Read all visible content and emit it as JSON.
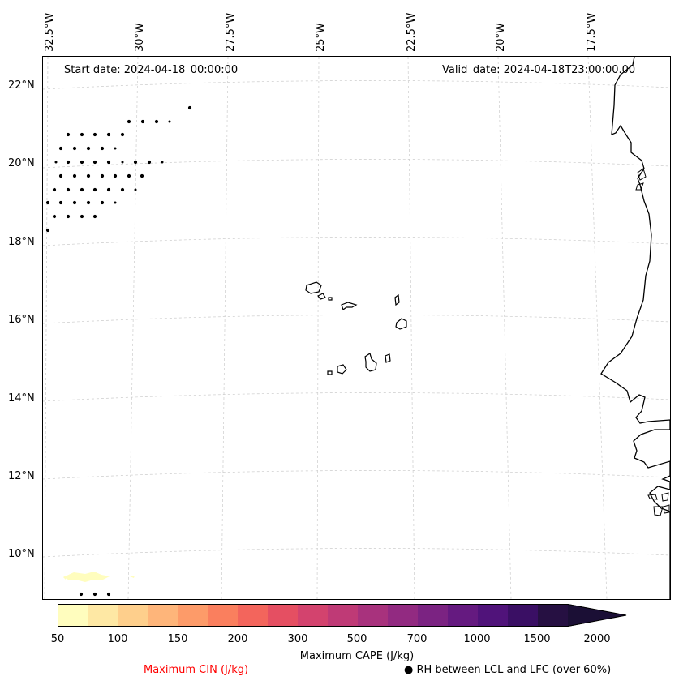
{
  "longitude_labels": [
    "32.5°W",
    "30°W",
    "27.5°W",
    "25°W",
    "22.5°W",
    "20°W",
    "17.5°W"
  ],
  "latitude_labels": [
    "22°N",
    "20°N",
    "18°N",
    "16°N",
    "14°N",
    "12°N",
    "10°N"
  ],
  "map": {
    "start_date": "Start date: 2024-04-18_00:00:00",
    "valid_date": "Valid_date: 2024-04-18T23:00:00.00"
  },
  "colorbar": {
    "ticks": [
      "50",
      "100",
      "150",
      "200",
      "300",
      "500",
      "700",
      "1000",
      "1500",
      "2000"
    ],
    "label": "Maximum CAPE (J/kg)",
    "colors": [
      "#fffdbe",
      "#fee8a4",
      "#fecf8c",
      "#feb57a",
      "#fd9b69",
      "#fa7f5e",
      "#f3655c",
      "#e54f62",
      "#d3436e",
      "#bf3a76",
      "#a8327d",
      "#922a81",
      "#7b2382",
      "#651a80",
      "#50137a",
      "#3a0f64",
      "#261042",
      "#1b0f35"
    ]
  },
  "legend": {
    "cin": "Maximum CIN (J/kg)",
    "rh_marker": "●",
    "rh": "RH between LCL and LFC (over 60%)",
    "cin_color": "#ff0000"
  }
}
